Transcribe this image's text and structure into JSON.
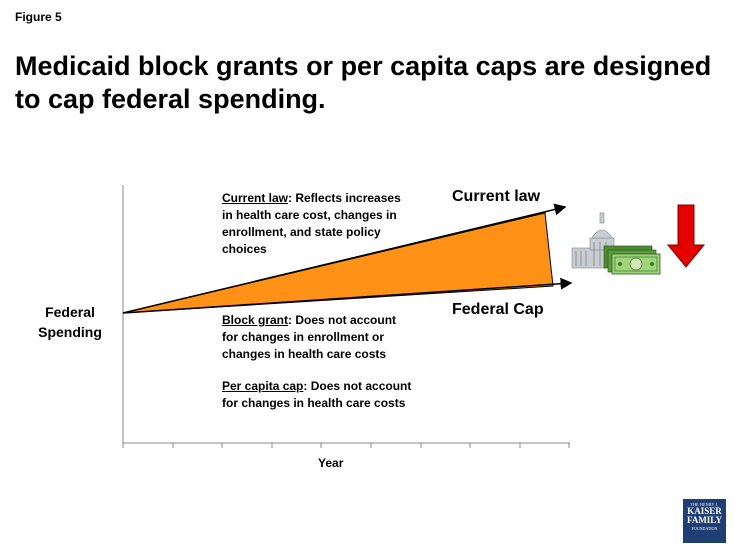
{
  "figure_label": "Figure 5",
  "title": "Medicaid block grants or per capita caps are designed to cap federal spending.",
  "y_axis_label_line1": "Federal",
  "y_axis_label_line2": "Spending",
  "x_axis_label": "Year",
  "current_law_line_label": "Current law",
  "federal_cap_line_label": "Federal Cap",
  "current_law_note": {
    "term": "Current law",
    "lines": [
      ": Reflects increases",
      "in health care cost, changes in",
      "enrollment, and state policy",
      "choices"
    ]
  },
  "block_grant_note": {
    "term": "Block grant",
    "lines": [
      ": Does not account",
      "for changes in enrollment or",
      "changes in health care costs"
    ]
  },
  "per_capita_note": {
    "term": "Per capita cap",
    "lines": [
      ": Does not account",
      "for changes in health care costs"
    ]
  },
  "logo": {
    "line1": "THE HENRY J.",
    "line2": "KAISER",
    "line3": "FAMILY",
    "line4": "FOUNDATION"
  },
  "icons": [
    "capitol-building-icon",
    "money-stack-icon",
    "down-arrow-icon"
  ],
  "colors": {
    "fill": "#ff9216",
    "arrow": "#e50000",
    "logo_bg": "#1f3e73"
  }
}
